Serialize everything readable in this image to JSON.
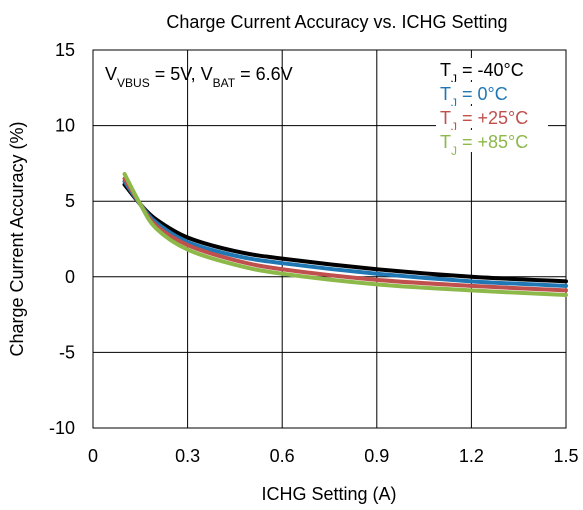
{
  "chart_data": {
    "type": "line",
    "title": "Charge Current Accuracy vs. ICHG Setting",
    "xlabel": "ICHG Setting (A)",
    "ylabel": "Charge Current Accuracy (%)",
    "xlim": [
      0,
      1.5
    ],
    "ylim": [
      -10,
      15
    ],
    "x_ticks": [
      0,
      0.3,
      0.6,
      0.9,
      1.2,
      1.5
    ],
    "x_tick_labels": [
      "0",
      "0.3",
      "0.6",
      "0.9",
      "1.2",
      "1.5"
    ],
    "y_ticks": [
      -10,
      -5,
      0,
      5,
      10,
      15
    ],
    "y_tick_labels": [
      "-10",
      "-5",
      "0",
      "5",
      "10",
      "15"
    ],
    "grid": true,
    "legend_position": "top-right",
    "condition_annotation": {
      "v1_main": "V",
      "v1_sub": "VBUS",
      "v1_rest": " = 5V, ",
      "v2_main": "V",
      "v2_sub": "BAT",
      "v2_rest": " = 6.6V"
    },
    "series": [
      {
        "name": "TJ = -40°C",
        "main": "T",
        "sub": "J",
        "rest": " = -40°C",
        "color": "#000000",
        "x": [
          0.1,
          0.15,
          0.2,
          0.3,
          0.45,
          0.6,
          0.9,
          1.2,
          1.5
        ],
        "y": [
          6.1,
          4.8,
          3.8,
          2.6,
          1.7,
          1.2,
          0.5,
          0.0,
          -0.3
        ]
      },
      {
        "name": "TJ = 0°C",
        "main": "T",
        "sub": "J",
        "rest": " = 0°C",
        "color": "#1f77b4",
        "x": [
          0.1,
          0.15,
          0.2,
          0.3,
          0.45,
          0.6,
          0.9,
          1.2,
          1.5
        ],
        "y": [
          6.3,
          4.8,
          3.6,
          2.3,
          1.4,
          0.9,
          0.2,
          -0.3,
          -0.6
        ]
      },
      {
        "name": "TJ = +25°C",
        "main": "T",
        "sub": "J",
        "rest": " = +25°C",
        "color": "#c0504d",
        "x": [
          0.1,
          0.15,
          0.2,
          0.3,
          0.45,
          0.6,
          0.9,
          1.2,
          1.5
        ],
        "y": [
          6.5,
          4.8,
          3.4,
          2.1,
          1.1,
          0.5,
          -0.2,
          -0.6,
          -0.9
        ]
      },
      {
        "name": "TJ = +85°C",
        "main": "T",
        "sub": "J",
        "rest": " = +85°C",
        "color": "#8db84a",
        "x": [
          0.1,
          0.15,
          0.2,
          0.3,
          0.45,
          0.6,
          0.9,
          1.2,
          1.5
        ],
        "y": [
          6.8,
          4.8,
          3.2,
          1.8,
          0.8,
          0.2,
          -0.5,
          -0.9,
          -1.2
        ]
      }
    ]
  }
}
